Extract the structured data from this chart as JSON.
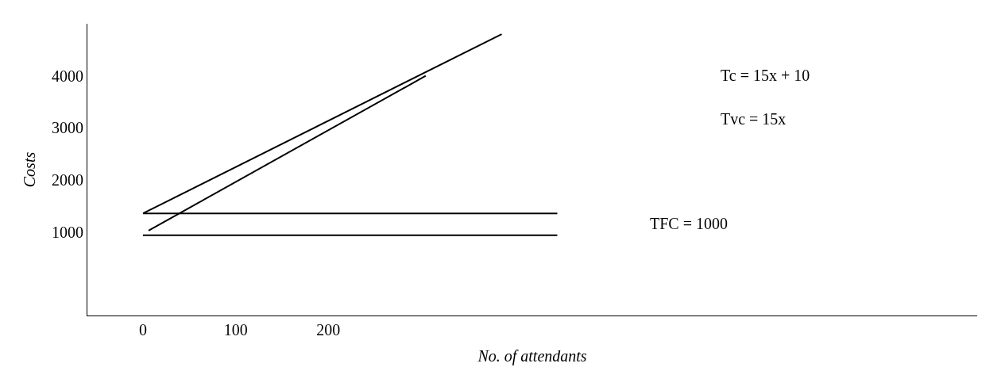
{
  "chart_data": {
    "type": "line",
    "ylabel": "Costs",
    "xlabel": "No. of attendants",
    "xlim": [
      -60,
      900
    ],
    "ylim": [
      -600,
      5000
    ],
    "xticks": [
      0,
      100,
      200
    ],
    "yticks": [
      1000,
      2000,
      3000,
      4000
    ],
    "marker": "none",
    "line_style": "solid",
    "series": [
      {
        "color": "#000000",
        "x": [
          0,
          387
        ],
        "values": [
          1360,
          4800
        ]
      },
      {
        "color": "#000000",
        "x": [
          6,
          305
        ],
        "values": [
          1030,
          4000
        ]
      },
      {
        "color": "#000000",
        "x": [
          0,
          447
        ],
        "values": [
          1360,
          1360
        ]
      },
      {
        "color": "#000000",
        "x": [
          0,
          447
        ],
        "values": [
          940,
          940
        ]
      }
    ],
    "annotations": [
      "Tc = 15x + 10",
      "Tvc = 15x",
      "TFC = 1000"
    ]
  }
}
